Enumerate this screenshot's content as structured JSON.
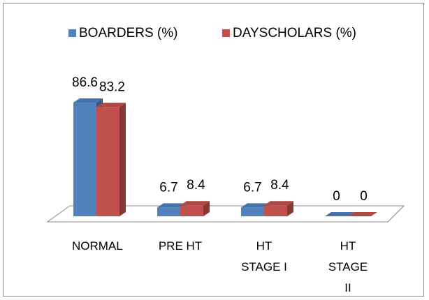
{
  "chart_data": {
    "type": "bar3d",
    "categories": [
      "NORMAL",
      "PRE HT",
      "HT STAGE I",
      "HT STAGE II"
    ],
    "series": [
      {
        "name": "BOARDERS (%)",
        "color": "#4f81bd",
        "values": [
          86.6,
          6.7,
          6.7,
          0
        ]
      },
      {
        "name": "DAYSCHOLARS (%)",
        "color": "#c0504d",
        "values": [
          83.2,
          8.4,
          8.4,
          0
        ]
      }
    ],
    "legend": "top"
  }
}
